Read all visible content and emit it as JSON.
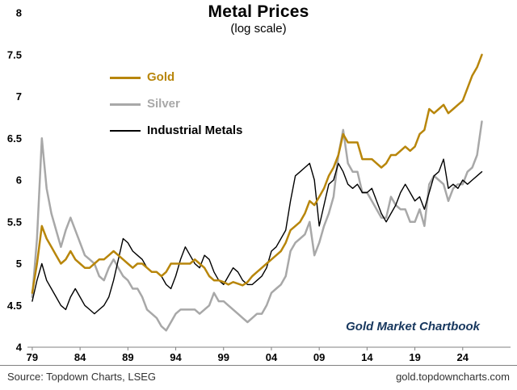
{
  "header": {
    "title": "Metal Prices",
    "subtitle": "(log scale)"
  },
  "annotation": {
    "text": "Gold Market Chartbook",
    "color": "#17375E"
  },
  "footer": {
    "source": "Source: Topdown Charts, LSEG",
    "url": "gold.topdowncharts.com"
  },
  "chart_data": {
    "type": "line",
    "title": "Metal Prices",
    "subtitle": "(log scale)",
    "scale": "log",
    "grid": false,
    "legend_position": "upper-left-inside",
    "xlim": [
      1978.5,
      2029
    ],
    "ylim": [
      4,
      8
    ],
    "x_ticks": [
      {
        "value": 1979,
        "label": "79"
      },
      {
        "value": 1984,
        "label": "84"
      },
      {
        "value": 1989,
        "label": "89"
      },
      {
        "value": 1994,
        "label": "94"
      },
      {
        "value": 1999,
        "label": "99"
      },
      {
        "value": 2004,
        "label": "04"
      },
      {
        "value": 2009,
        "label": "09"
      },
      {
        "value": 2014,
        "label": "14"
      },
      {
        "value": 2019,
        "label": "19"
      },
      {
        "value": 2024,
        "label": "24"
      }
    ],
    "y_ticks": [
      {
        "value": 8,
        "label": "8"
      },
      {
        "value": 7.5,
        "label": "7.5"
      },
      {
        "value": 7,
        "label": "7"
      },
      {
        "value": 6.5,
        "label": "6.5"
      },
      {
        "value": 6,
        "label": "6"
      },
      {
        "value": 5.5,
        "label": "5.5"
      },
      {
        "value": 5,
        "label": "5"
      },
      {
        "value": 4.5,
        "label": "4.5"
      },
      {
        "value": 4,
        "label": "4"
      }
    ],
    "x": [
      1979,
      1979.5,
      1980,
      1980.5,
      1981,
      1981.5,
      1982,
      1982.5,
      1983,
      1983.5,
      1984,
      1984.5,
      1985,
      1985.5,
      1986,
      1986.5,
      1987,
      1987.5,
      1988,
      1988.5,
      1989,
      1989.5,
      1990,
      1990.5,
      1991,
      1991.5,
      1992,
      1992.5,
      1993,
      1993.5,
      1994,
      1994.5,
      1995,
      1995.5,
      1996,
      1996.5,
      1997,
      1997.5,
      1998,
      1998.5,
      1999,
      1999.5,
      2000,
      2000.5,
      2001,
      2001.5,
      2002,
      2002.5,
      2003,
      2003.5,
      2004,
      2004.5,
      2005,
      2005.5,
      2006,
      2006.5,
      2007,
      2007.5,
      2008,
      2008.5,
      2009,
      2009.5,
      2010,
      2010.5,
      2011,
      2011.5,
      2012,
      2012.5,
      2013,
      2013.5,
      2014,
      2014.5,
      2015,
      2015.5,
      2016,
      2016.5,
      2017,
      2017.5,
      2018,
      2018.5,
      2019,
      2019.5,
      2020,
      2020.5,
      2021,
      2021.5,
      2022,
      2022.5,
      2023,
      2023.5,
      2024,
      2024.5,
      2025,
      2025.5,
      2026
    ],
    "series": [
      {
        "id": "gold",
        "name": "Gold",
        "color": "#B8860B",
        "width": 2.5,
        "z": 3,
        "values": [
          4.65,
          5.0,
          5.45,
          5.3,
          5.2,
          5.1,
          5.0,
          5.05,
          5.15,
          5.05,
          5.0,
          4.95,
          4.95,
          5.0,
          5.05,
          5.05,
          5.1,
          5.15,
          5.1,
          5.05,
          5.0,
          4.95,
          5.0,
          5.0,
          4.95,
          4.9,
          4.9,
          4.85,
          4.9,
          5.0,
          5.0,
          5.0,
          5.0,
          5.0,
          5.05,
          5.0,
          4.95,
          4.85,
          4.8,
          4.8,
          4.78,
          4.75,
          4.78,
          4.76,
          4.74,
          4.78,
          4.85,
          4.9,
          4.95,
          5.0,
          5.05,
          5.1,
          5.15,
          5.25,
          5.4,
          5.45,
          5.5,
          5.6,
          5.75,
          5.7,
          5.8,
          5.9,
          6.05,
          6.15,
          6.3,
          6.55,
          6.45,
          6.45,
          6.45,
          6.25,
          6.25,
          6.25,
          6.2,
          6.15,
          6.2,
          6.3,
          6.3,
          6.35,
          6.4,
          6.35,
          6.4,
          6.55,
          6.6,
          6.85,
          6.8,
          6.85,
          6.9,
          6.8,
          6.85,
          6.9,
          6.95,
          7.1,
          7.25,
          7.35,
          7.5
        ]
      },
      {
        "id": "silver",
        "name": "Silver",
        "color": "#A8A8A8",
        "width": 2.5,
        "z": 1,
        "values": [
          4.6,
          5.3,
          6.5,
          5.9,
          5.6,
          5.4,
          5.2,
          5.4,
          5.55,
          5.4,
          5.25,
          5.1,
          5.05,
          5.0,
          4.85,
          4.8,
          4.95,
          5.05,
          4.95,
          4.85,
          4.8,
          4.7,
          4.7,
          4.6,
          4.45,
          4.4,
          4.35,
          4.25,
          4.2,
          4.3,
          4.4,
          4.45,
          4.45,
          4.45,
          4.45,
          4.4,
          4.45,
          4.5,
          4.65,
          4.55,
          4.55,
          4.5,
          4.45,
          4.4,
          4.35,
          4.3,
          4.35,
          4.4,
          4.4,
          4.5,
          4.65,
          4.7,
          4.75,
          4.85,
          5.15,
          5.25,
          5.3,
          5.35,
          5.5,
          5.1,
          5.25,
          5.45,
          5.6,
          5.8,
          6.3,
          6.6,
          6.2,
          6.1,
          6.1,
          5.85,
          5.85,
          5.75,
          5.65,
          5.55,
          5.55,
          5.8,
          5.7,
          5.65,
          5.65,
          5.5,
          5.5,
          5.65,
          5.45,
          5.95,
          6.05,
          6.0,
          5.95,
          5.75,
          5.9,
          5.95,
          5.95,
          6.1,
          6.15,
          6.3,
          6.7
        ]
      },
      {
        "id": "industrial-metals",
        "name": "Industrial Metals",
        "color": "#000000",
        "width": 1.4,
        "z": 2,
        "values": [
          4.55,
          4.8,
          5.0,
          4.8,
          4.7,
          4.6,
          4.5,
          4.45,
          4.6,
          4.7,
          4.6,
          4.5,
          4.45,
          4.4,
          4.45,
          4.5,
          4.6,
          4.8,
          5.05,
          5.3,
          5.25,
          5.15,
          5.1,
          5.05,
          4.95,
          4.9,
          4.9,
          4.85,
          4.75,
          4.7,
          4.85,
          5.05,
          5.2,
          5.1,
          5.0,
          4.95,
          5.1,
          5.05,
          4.9,
          4.8,
          4.75,
          4.85,
          4.95,
          4.9,
          4.8,
          4.75,
          4.75,
          4.8,
          4.85,
          4.95,
          5.15,
          5.2,
          5.3,
          5.4,
          5.75,
          6.05,
          6.1,
          6.15,
          6.2,
          6.0,
          5.45,
          5.7,
          5.95,
          6.0,
          6.2,
          6.1,
          5.95,
          5.9,
          5.95,
          5.85,
          5.85,
          5.9,
          5.75,
          5.6,
          5.5,
          5.6,
          5.7,
          5.85,
          5.95,
          5.85,
          5.75,
          5.8,
          5.65,
          5.85,
          6.05,
          6.1,
          6.25,
          5.9,
          5.95,
          5.9,
          6.0,
          5.95,
          6.0,
          6.05,
          6.1
        ]
      }
    ]
  }
}
